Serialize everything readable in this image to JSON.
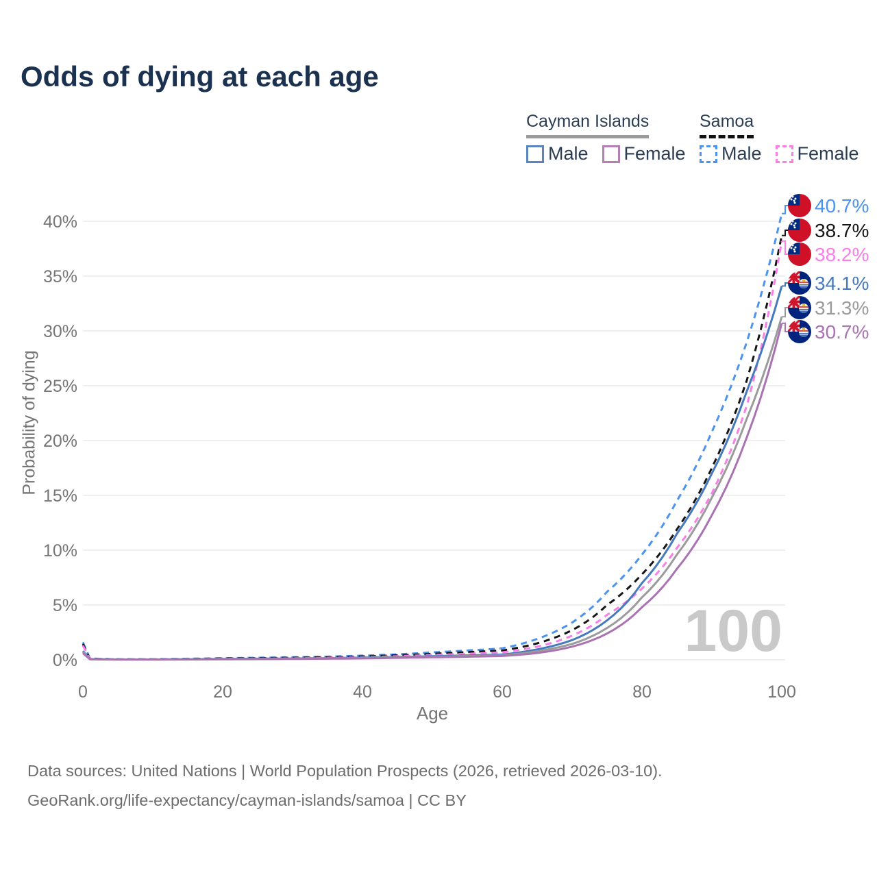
{
  "title": "Odds of dying at each age",
  "watermark": "100",
  "legend": {
    "groups": [
      {
        "label": "Cayman Islands",
        "line_style": "solid",
        "line_color": "#9a9a9a",
        "items": [
          {
            "label": "Male",
            "color": "#4679bd",
            "dashed": false
          },
          {
            "label": "Female",
            "color": "#a973b2",
            "dashed": false
          }
        ]
      },
      {
        "label": "Samoa",
        "line_style": "dashed",
        "line_color": "#111111",
        "items": [
          {
            "label": "Male",
            "color": "#4b93ef",
            "dashed": true
          },
          {
            "label": "Female",
            "color": "#f97ee8",
            "dashed": true
          }
        ]
      }
    ]
  },
  "axes": {
    "x_label": "Age",
    "y_label": "Probability of dying",
    "x_ticks": [
      {
        "v": 0,
        "label": "0"
      },
      {
        "v": 20,
        "label": "20"
      },
      {
        "v": 40,
        "label": "40"
      },
      {
        "v": 60,
        "label": "60"
      },
      {
        "v": 80,
        "label": "80"
      },
      {
        "v": 100,
        "label": "100"
      }
    ],
    "y_ticks": [
      {
        "v": 0,
        "label": "0%"
      },
      {
        "v": 5,
        "label": "5%"
      },
      {
        "v": 10,
        "label": "10%"
      },
      {
        "v": 15,
        "label": "15%"
      },
      {
        "v": 20,
        "label": "20%"
      },
      {
        "v": 25,
        "label": "25%"
      },
      {
        "v": 30,
        "label": "30%"
      },
      {
        "v": 35,
        "label": "35%"
      },
      {
        "v": 40,
        "label": "40%"
      }
    ]
  },
  "chart_data": {
    "type": "line",
    "title": "Odds of dying at each age",
    "xlabel": "Age",
    "ylabel": "Probability of dying",
    "xlim": [
      0,
      100
    ],
    "ylim": [
      0,
      42
    ],
    "grid": "horizontal-only",
    "legend_position": "top-right",
    "current_age_indicator": 100,
    "ages": [
      0,
      1,
      5,
      10,
      15,
      20,
      25,
      30,
      35,
      40,
      45,
      50,
      55,
      60,
      65,
      70,
      75,
      80,
      85,
      90,
      95,
      100
    ],
    "series": [
      {
        "id": "samoa-male",
        "name": "Samoa Male",
        "country": "Samoa",
        "sex": "Male",
        "color": "#4b93ef",
        "dash": "dashed",
        "flag": "samoa",
        "end_label": "40.7%",
        "end_value": 40.7,
        "values": [
          1.6,
          0.12,
          0.06,
          0.06,
          0.1,
          0.15,
          0.19,
          0.23,
          0.29,
          0.38,
          0.5,
          0.68,
          0.85,
          1.05,
          1.9,
          3.4,
          6.2,
          9.6,
          14.5,
          20.8,
          29.0,
          40.7
        ]
      },
      {
        "id": "samoa-total",
        "name": "Samoa Both sexes",
        "country": "Samoa",
        "sex": "Both",
        "color": "#151515",
        "dash": "dashed",
        "flag": "samoa",
        "end_label": "38.7%",
        "end_value": 38.7,
        "values": [
          1.45,
          0.11,
          0.05,
          0.05,
          0.08,
          0.12,
          0.15,
          0.19,
          0.24,
          0.31,
          0.41,
          0.55,
          0.7,
          0.85,
          1.5,
          2.7,
          5.0,
          7.8,
          11.9,
          17.5,
          25.5,
          38.7
        ]
      },
      {
        "id": "samoa-female",
        "name": "Samoa Female",
        "country": "Samoa",
        "sex": "Female",
        "color": "#f97ee8",
        "dash": "dashed",
        "flag": "samoa",
        "end_label": "38.2%",
        "end_value": 38.2,
        "values": [
          1.3,
          0.1,
          0.05,
          0.05,
          0.06,
          0.09,
          0.11,
          0.14,
          0.18,
          0.24,
          0.33,
          0.44,
          0.55,
          0.68,
          1.2,
          2.2,
          4.1,
          6.5,
          10.2,
          15.2,
          23.2,
          38.2
        ]
      },
      {
        "id": "cayman-male",
        "name": "Cayman Islands Male",
        "country": "Cayman Islands",
        "sex": "Male",
        "color": "#4679bd",
        "dash": "solid",
        "flag": "cayman",
        "end_label": "34.1%",
        "end_value": 34.1,
        "values": [
          0.8,
          0.07,
          0.03,
          0.03,
          0.05,
          0.08,
          0.1,
          0.12,
          0.15,
          0.2,
          0.26,
          0.33,
          0.4,
          0.48,
          0.95,
          1.8,
          3.6,
          7.0,
          11.5,
          17.0,
          24.5,
          34.1
        ]
      },
      {
        "id": "cayman-total",
        "name": "Cayman Islands Both sexes",
        "country": "Cayman Islands",
        "sex": "Both",
        "color": "#9b9b9b",
        "dash": "solid",
        "flag": "cayman",
        "end_label": "31.3%",
        "end_value": 31.3,
        "values": [
          0.7,
          0.06,
          0.03,
          0.03,
          0.04,
          0.06,
          0.08,
          0.1,
          0.13,
          0.17,
          0.22,
          0.28,
          0.34,
          0.41,
          0.78,
          1.45,
          2.9,
          5.7,
          9.6,
          14.8,
          22.0,
          31.3
        ]
      },
      {
        "id": "cayman-female",
        "name": "Cayman Islands Female",
        "country": "Cayman Islands",
        "sex": "Female",
        "color": "#a973b2",
        "dash": "solid",
        "flag": "cayman",
        "end_label": "30.7%",
        "end_value": 30.7,
        "values": [
          0.6,
          0.05,
          0.02,
          0.02,
          0.03,
          0.05,
          0.06,
          0.08,
          0.1,
          0.13,
          0.18,
          0.23,
          0.28,
          0.35,
          0.62,
          1.2,
          2.4,
          4.8,
          8.3,
          13.2,
          20.3,
          30.7
        ]
      }
    ]
  },
  "icons": {
    "samoa_flag": {
      "red": "#ce1126",
      "blue": "#002b7f",
      "star": "#ffffff"
    },
    "cayman_flag": {
      "blue": "#00247d",
      "jack_red": "#cf142b",
      "jack_white": "#ffffff",
      "crest_cream": "#f5eedb",
      "crest_blue": "#3d6db5",
      "crest_gold": "#e8b83a"
    }
  },
  "footer": {
    "line1": "Data sources: United Nations | World Population Prospects (2026, retrieved 2026-03-10).",
    "line2": "GeoRank.org/life-expectancy/cayman-islands/samoa | CC BY"
  }
}
